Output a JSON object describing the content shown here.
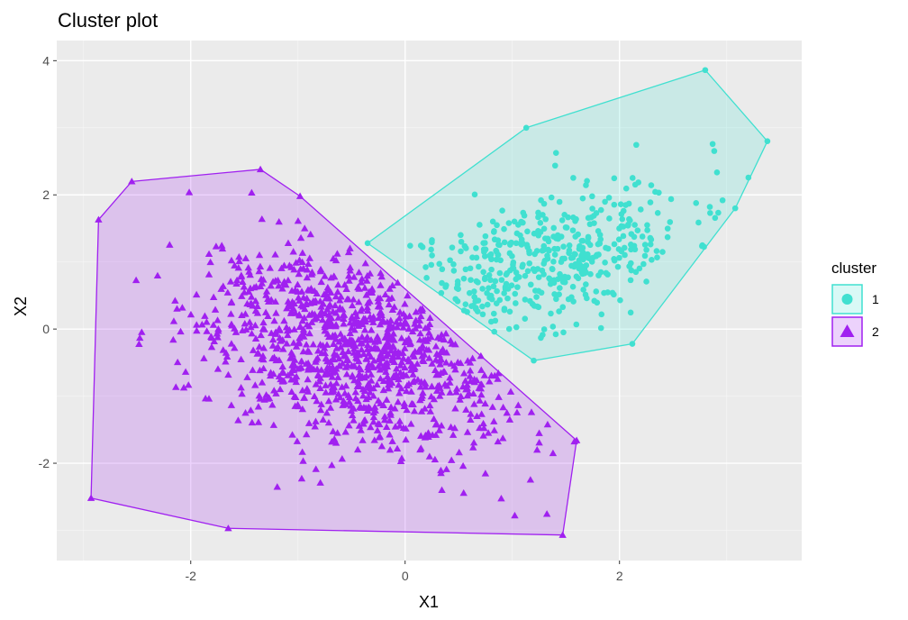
{
  "chart_data": {
    "type": "scatter",
    "title": "Cluster plot",
    "xlabel": "X1",
    "ylabel": "X2",
    "xlim": [
      -3.25,
      3.7
    ],
    "ylim": [
      -3.45,
      4.3
    ],
    "x_ticks": [
      -2,
      0,
      2
    ],
    "x_tick_labels": [
      "-2",
      "0",
      "2"
    ],
    "y_ticks": [
      -2,
      0,
      2,
      4
    ],
    "y_tick_labels": [
      "-2",
      "0",
      "2",
      "4"
    ],
    "grid": true,
    "panel_background": "#ebebeb",
    "legend": {
      "title": "cluster",
      "position": "right"
    },
    "series": [
      {
        "name": "1",
        "color": "#40e0d0",
        "marker": "circle",
        "hull": [
          [
            1.13,
            3.0
          ],
          [
            2.8,
            3.86
          ],
          [
            3.38,
            2.8
          ],
          [
            3.08,
            1.8
          ],
          [
            2.12,
            -0.22
          ],
          [
            1.2,
            -0.47
          ],
          [
            -0.35,
            1.28
          ]
        ],
        "count": 450,
        "center": [
          1.25,
          1.0
        ],
        "spread": [
          0.7,
          0.6
        ],
        "correlation": 0.55,
        "seed": 11
      },
      {
        "name": "2",
        "color": "#a020f0",
        "marker": "triangle",
        "hull": [
          [
            -2.55,
            2.2
          ],
          [
            -1.35,
            2.38
          ],
          [
            -0.98,
            1.98
          ],
          [
            1.6,
            -1.66
          ],
          [
            1.47,
            -3.07
          ],
          [
            -1.65,
            -2.97
          ],
          [
            -2.93,
            -2.52
          ],
          [
            -2.86,
            1.63
          ]
        ],
        "count": 1100,
        "center": [
          -0.45,
          -0.3
        ],
        "spread": [
          0.75,
          0.75
        ],
        "correlation": -0.35,
        "seed": 29
      }
    ]
  }
}
